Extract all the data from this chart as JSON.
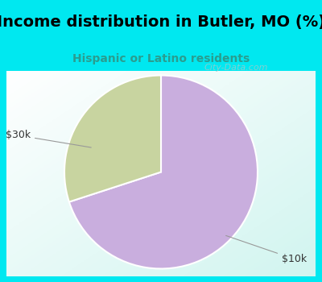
{
  "title": "Income distribution in Butler, MO (%)",
  "subtitle": "Hispanic or Latino residents",
  "slices": [
    0.7,
    0.3
  ],
  "labels": [
    "$10k",
    "$30k"
  ],
  "colors": [
    "#c9aede",
    "#c8d4a0"
  ],
  "start_angle": 90,
  "title_fontsize": 14,
  "subtitle_fontsize": 10,
  "subtitle_color": "#2a9d8f",
  "title_bg_color": "#00e8f0",
  "annotation_color": "#333333",
  "watermark_text": "City-Data.com",
  "watermark_color": "#aac8c8",
  "chart_border_color": "#00e8f0"
}
